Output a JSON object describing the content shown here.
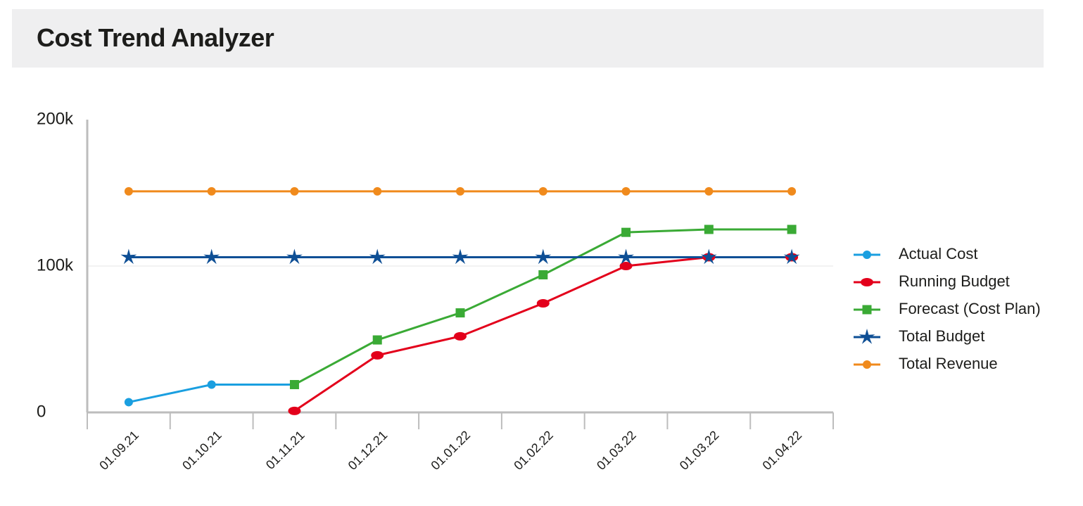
{
  "header": {
    "title": "Cost Trend Analyzer"
  },
  "chart_data": {
    "type": "line",
    "categories": [
      "01.09.21",
      "01.10.21",
      "01.11.21",
      "01.12.21",
      "01.01.22",
      "01.02.22",
      "01.03.22",
      "01.03.22",
      "01.04.22"
    ],
    "series": [
      {
        "name": "Actual Cost",
        "color": "#1a9fe0",
        "marker": "circle",
        "values": [
          7000,
          19000,
          19000,
          null,
          null,
          null,
          null,
          null,
          null
        ]
      },
      {
        "name": "Running Budget",
        "color": "#e3001b",
        "marker": "ellipse",
        "values": [
          null,
          null,
          1000,
          39000,
          52000,
          74500,
          100000,
          106000,
          106000
        ]
      },
      {
        "name": "Forecast (Cost Plan)",
        "color": "#3aaa35",
        "marker": "square",
        "values": [
          null,
          null,
          19000,
          49500,
          68000,
          94000,
          123000,
          125000,
          125000
        ]
      },
      {
        "name": "Total Budget",
        "color": "#0e4f95",
        "marker": "star",
        "values": [
          106000,
          106000,
          106000,
          106000,
          106000,
          106000,
          106000,
          106000,
          106000
        ]
      },
      {
        "name": "Total Revenue",
        "color": "#f08a1c",
        "marker": "circle",
        "values": [
          151000,
          151000,
          151000,
          151000,
          151000,
          151000,
          151000,
          151000,
          151000
        ]
      }
    ],
    "ylim": [
      0,
      200000
    ],
    "yticks": [
      0,
      {
        "value": 100000,
        "label": "100k"
      },
      {
        "value": 200000,
        "label": "200k"
      }
    ],
    "grid": true,
    "legend": "right"
  }
}
